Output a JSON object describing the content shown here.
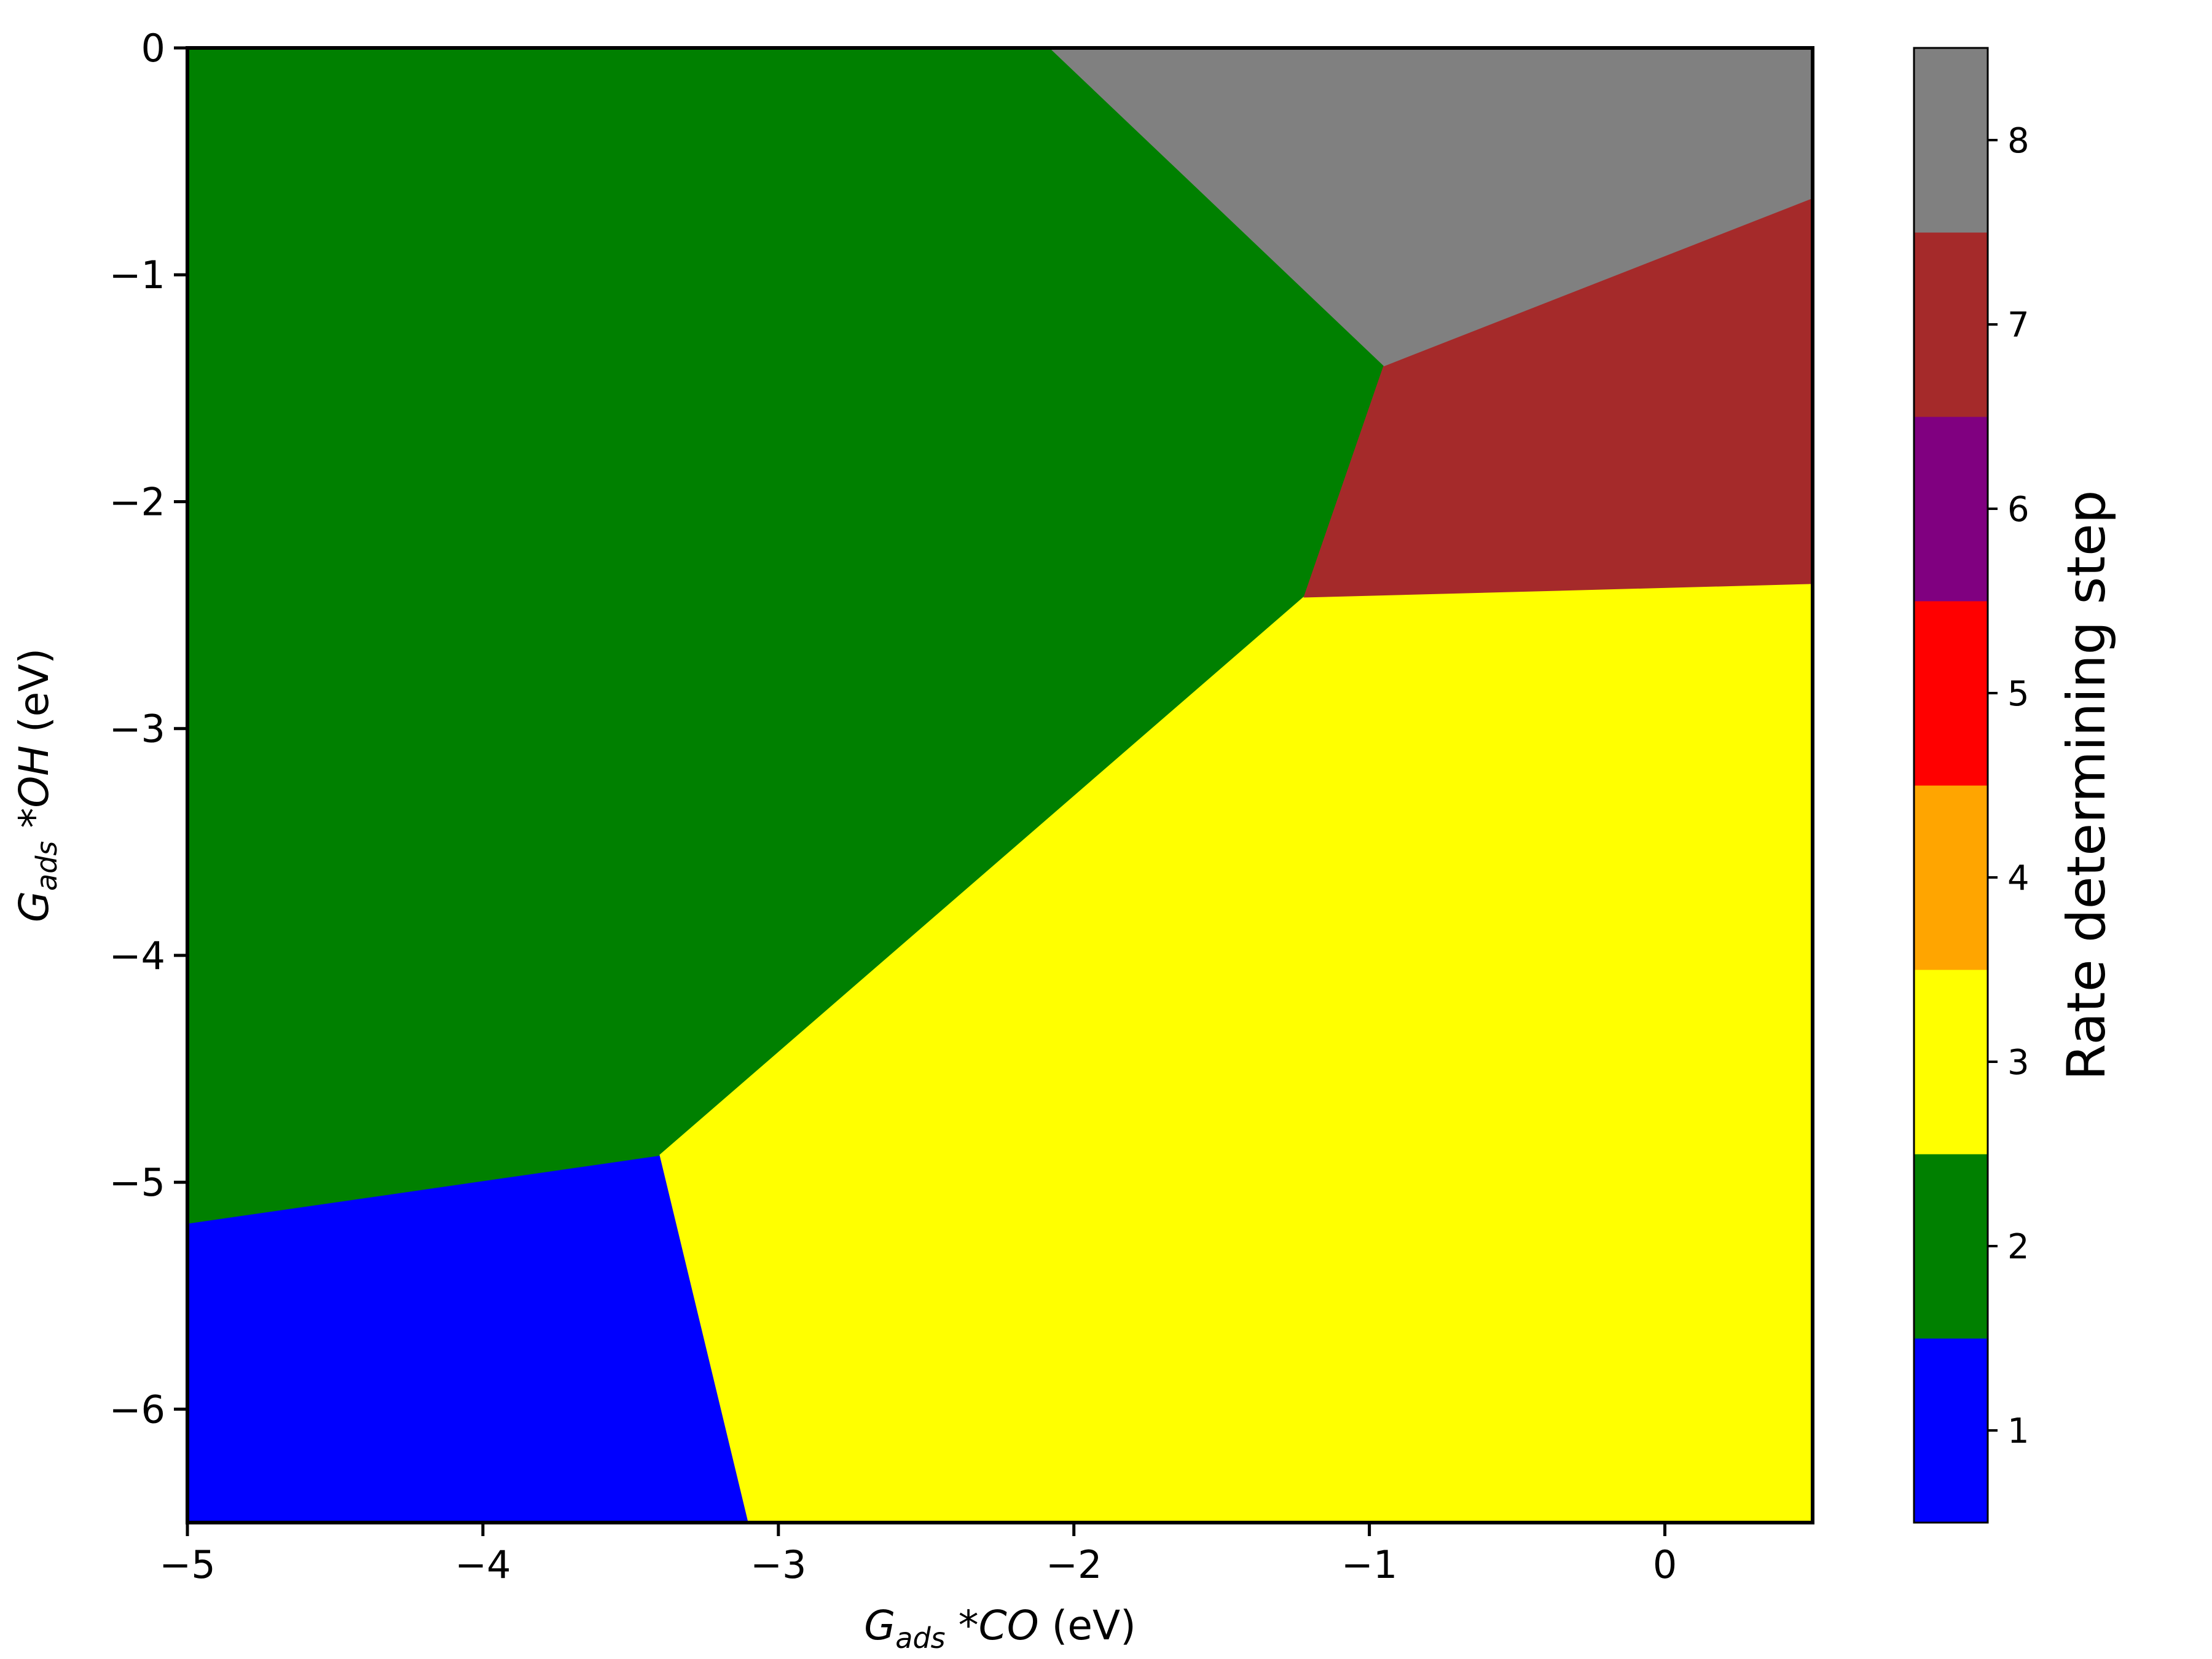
{
  "chart_data": {
    "type": "heatmap",
    "title": "",
    "xlabel": {
      "prefix": "G",
      "sub": "ads",
      "mid": " *",
      "species": "CO",
      "unit": " (eV)"
    },
    "ylabel": {
      "prefix": "G",
      "sub": "ads",
      "mid": " *",
      "species": "OH",
      "unit": " (eV)"
    },
    "xlim": [
      -5,
      0.5
    ],
    "ylim": [
      -6.5,
      0
    ],
    "x_ticks": [
      -5,
      -4,
      -3,
      -2,
      -1,
      0
    ],
    "x_tick_labels": [
      "−5",
      "−4",
      "−3",
      "−2",
      "−1",
      "0"
    ],
    "y_ticks": [
      0,
      -1,
      -2,
      -3,
      -4,
      -5,
      -6
    ],
    "y_tick_labels": [
      "0",
      "−1",
      "−2",
      "−3",
      "−4",
      "−5",
      "−6"
    ],
    "grid": false,
    "colorbar": {
      "label": "Rate determining step",
      "levels": [
        1,
        2,
        3,
        4,
        5,
        6,
        7,
        8
      ],
      "tick_labels": [
        "1",
        "2",
        "3",
        "4",
        "5",
        "6",
        "7",
        "8"
      ],
      "colors": [
        "#0000ff",
        "#008000",
        "#ffff00",
        "#ffa500",
        "#ff0000",
        "#800080",
        "#a52a2a",
        "#808080"
      ]
    },
    "regions": [
      {
        "step": 1,
        "color": "#0000ff",
        "polygon": [
          [
            -5,
            -5.18
          ],
          [
            -3.4,
            -4.88
          ],
          [
            -3.1,
            -6.5
          ],
          [
            -5,
            -6.5
          ]
        ]
      },
      {
        "step": 2,
        "color": "#008000",
        "polygon": [
          [
            -5,
            0
          ],
          [
            -2.08,
            0
          ],
          [
            -0.95,
            -1.4
          ],
          [
            -1.22,
            -2.42
          ],
          [
            -3.4,
            -4.88
          ],
          [
            -5,
            -5.18
          ]
        ]
      },
      {
        "step": 3,
        "color": "#ffff00",
        "polygon": [
          [
            -3.4,
            -4.88
          ],
          [
            -1.22,
            -2.42
          ],
          [
            0.5,
            -2.36
          ],
          [
            0.5,
            -6.5
          ],
          [
            -3.1,
            -6.5
          ]
        ]
      },
      {
        "step": 7,
        "color": "#a52a2a",
        "polygon": [
          [
            -0.95,
            -1.4
          ],
          [
            0.5,
            -0.66
          ],
          [
            0.5,
            -2.36
          ],
          [
            -1.22,
            -2.42
          ]
        ]
      },
      {
        "step": 8,
        "color": "#808080",
        "polygon": [
          [
            -2.08,
            0
          ],
          [
            0.5,
            0
          ],
          [
            0.5,
            -0.66
          ],
          [
            -0.95,
            -1.4
          ]
        ]
      }
    ]
  }
}
